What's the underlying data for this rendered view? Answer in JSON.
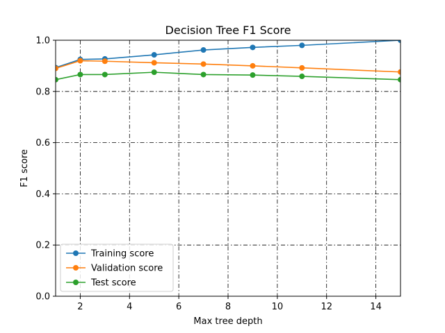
{
  "chart_data": {
    "type": "line",
    "title": "Decision Tree F1 Score",
    "xlabel": "Max tree depth",
    "ylabel": "F1 score",
    "xlim": [
      1,
      15
    ],
    "ylim": [
      0.0,
      1.0
    ],
    "xticks": [
      2,
      4,
      6,
      8,
      10,
      12,
      14
    ],
    "yticks": [
      0.0,
      0.2,
      0.4,
      0.6,
      0.8,
      1.0
    ],
    "xtick_labels": [
      "2",
      "4",
      "6",
      "8",
      "10",
      "12",
      "14"
    ],
    "ytick_labels": [
      "0.0",
      "0.2",
      "0.4",
      "0.6",
      "0.8",
      "1.0"
    ],
    "grid": true,
    "grid_style": "dash-dot",
    "legend_position": "lower-left",
    "x": [
      1,
      2,
      3,
      5,
      7,
      9,
      11,
      15
    ],
    "series": [
      {
        "name": "Training score",
        "color": "#1f77b4",
        "values": [
          0.893,
          0.925,
          0.927,
          0.943,
          0.962,
          0.972,
          0.98,
          1.0
        ]
      },
      {
        "name": "Validation score",
        "color": "#ff7f0e",
        "values": [
          0.89,
          0.92,
          0.918,
          0.912,
          0.907,
          0.9,
          0.892,
          0.876
        ]
      },
      {
        "name": "Test score",
        "color": "#2ca02c",
        "values": [
          0.846,
          0.866,
          0.866,
          0.875,
          0.866,
          0.864,
          0.859,
          0.846
        ]
      }
    ]
  }
}
